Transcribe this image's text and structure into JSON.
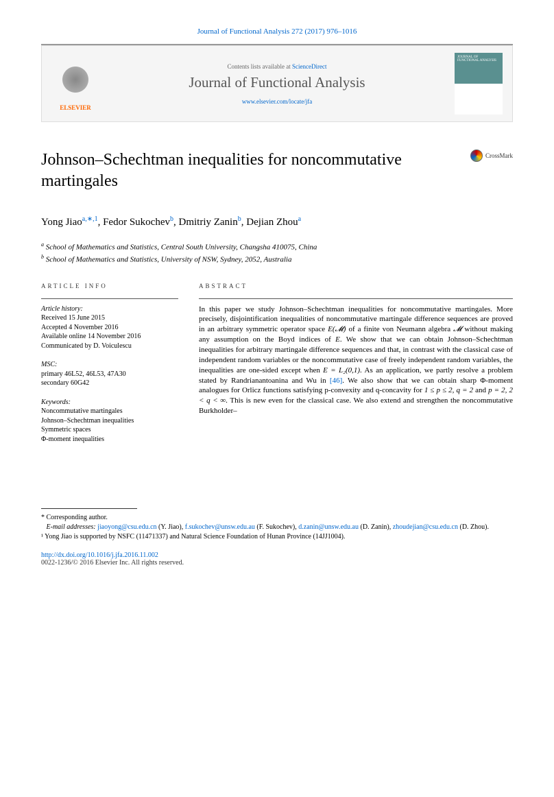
{
  "header": {
    "citation": "Journal of Functional Analysis 272 (2017) 976–1016",
    "contents_prefix": "Contents lists available at ",
    "contents_link": "ScienceDirect",
    "journal_name": "Journal of Functional Analysis",
    "journal_url": "www.elsevier.com/locate/jfa",
    "elsevier_label": "ELSEVIER",
    "cover_label": "JOURNAL OF FUNCTIONAL ANALYSIS",
    "crossmark": "CrossMark"
  },
  "title": "Johnson–Schechtman inequalities for noncommutative martingales",
  "authors_html": "Yong Jiao",
  "authors": [
    {
      "name": "Yong Jiao",
      "marks": "a,∗,1"
    },
    {
      "name": "Fedor Sukochev",
      "marks": "b"
    },
    {
      "name": "Dmitriy Zanin",
      "marks": "b"
    },
    {
      "name": "Dejian Zhou",
      "marks": "a"
    }
  ],
  "affiliations": [
    {
      "mark": "a",
      "text": "School of Mathematics and Statistics, Central South University, Changsha 410075, China"
    },
    {
      "mark": "b",
      "text": "School of Mathematics and Statistics, University of NSW, Sydney, 2052, Australia"
    }
  ],
  "article_info": {
    "label": "ARTICLE INFO",
    "history_heading": "Article history:",
    "history": [
      "Received 15 June 2015",
      "Accepted 4 November 2016",
      "Available online 14 November 2016",
      "Communicated by D. Voiculescu"
    ],
    "msc_heading": "MSC:",
    "msc": [
      "primary 46L52, 46L53, 47A30",
      "secondary 60G42"
    ],
    "keywords_heading": "Keywords:",
    "keywords": [
      "Noncommutative martingales",
      "Johnson–Schechtman inequalities",
      "Symmetric spaces",
      "Φ-moment inequalities"
    ]
  },
  "abstract": {
    "label": "ABSTRACT",
    "text_parts": [
      "In this paper we study Johnson–Schechtman inequalities for noncommutative martingales. More precisely, disjointification inequalities of noncommutative martingale difference sequences are proved in an arbitrary symmetric operator space ",
      " of a finite von Neumann algebra ",
      " without making any assumption on the Boyd indices of ",
      ". We show that we can obtain Johnson–Schechtman inequalities for arbitrary martingale difference sequences and that, in contrast with the classical case of independent random variables or the noncommutative case of freely independent random variables, the inequalities are one-sided except when ",
      ". As an application, we partly resolve a problem stated by Randrianantoanina and Wu in ",
      ". We also show that we can obtain sharp Φ-moment analogues for Orlicz functions satisfying p-convexity and q-concavity for ",
      " and ",
      ". This is new even for the classical case. We also extend and strengthen the noncommutative Burkholder–"
    ],
    "math": {
      "EM": "E(𝓜)",
      "M": "𝓜",
      "E": "E",
      "EL2": "E = L₂(0,1)",
      "ref46": "[46]",
      "range1": "1 ≤ p ≤ 2, q = 2",
      "range2": "p = 2, 2 < q < ∞"
    }
  },
  "footnotes": {
    "corresponding": "* Corresponding author.",
    "email_label": "E-mail addresses:",
    "emails": [
      {
        "addr": "jiaoyong@csu.edu.cn",
        "who": "(Y. Jiao)"
      },
      {
        "addr": "f.sukochev@unsw.edu.au",
        "who": "(F. Sukochev)"
      },
      {
        "addr": "d.zanin@unsw.edu.au",
        "who": "(D. Zanin)"
      },
      {
        "addr": "zhoudejian@csu.edu.cn",
        "who": "(D. Zhou)"
      }
    ],
    "note1": "¹ Yong Jiao is supported by NSFC (11471337) and Natural Science Foundation of Hunan Province (14JJ1004)."
  },
  "doi": {
    "url": "http://dx.doi.org/10.1016/j.jfa.2016.11.002",
    "copyright": "0022-1236/© 2016 Elsevier Inc. All rights reserved."
  },
  "colors": {
    "link": "#0066cc",
    "elsevier_orange": "#ff6600",
    "cover_bg": "#5a9090",
    "banner_bg": "#f5f5f5"
  }
}
